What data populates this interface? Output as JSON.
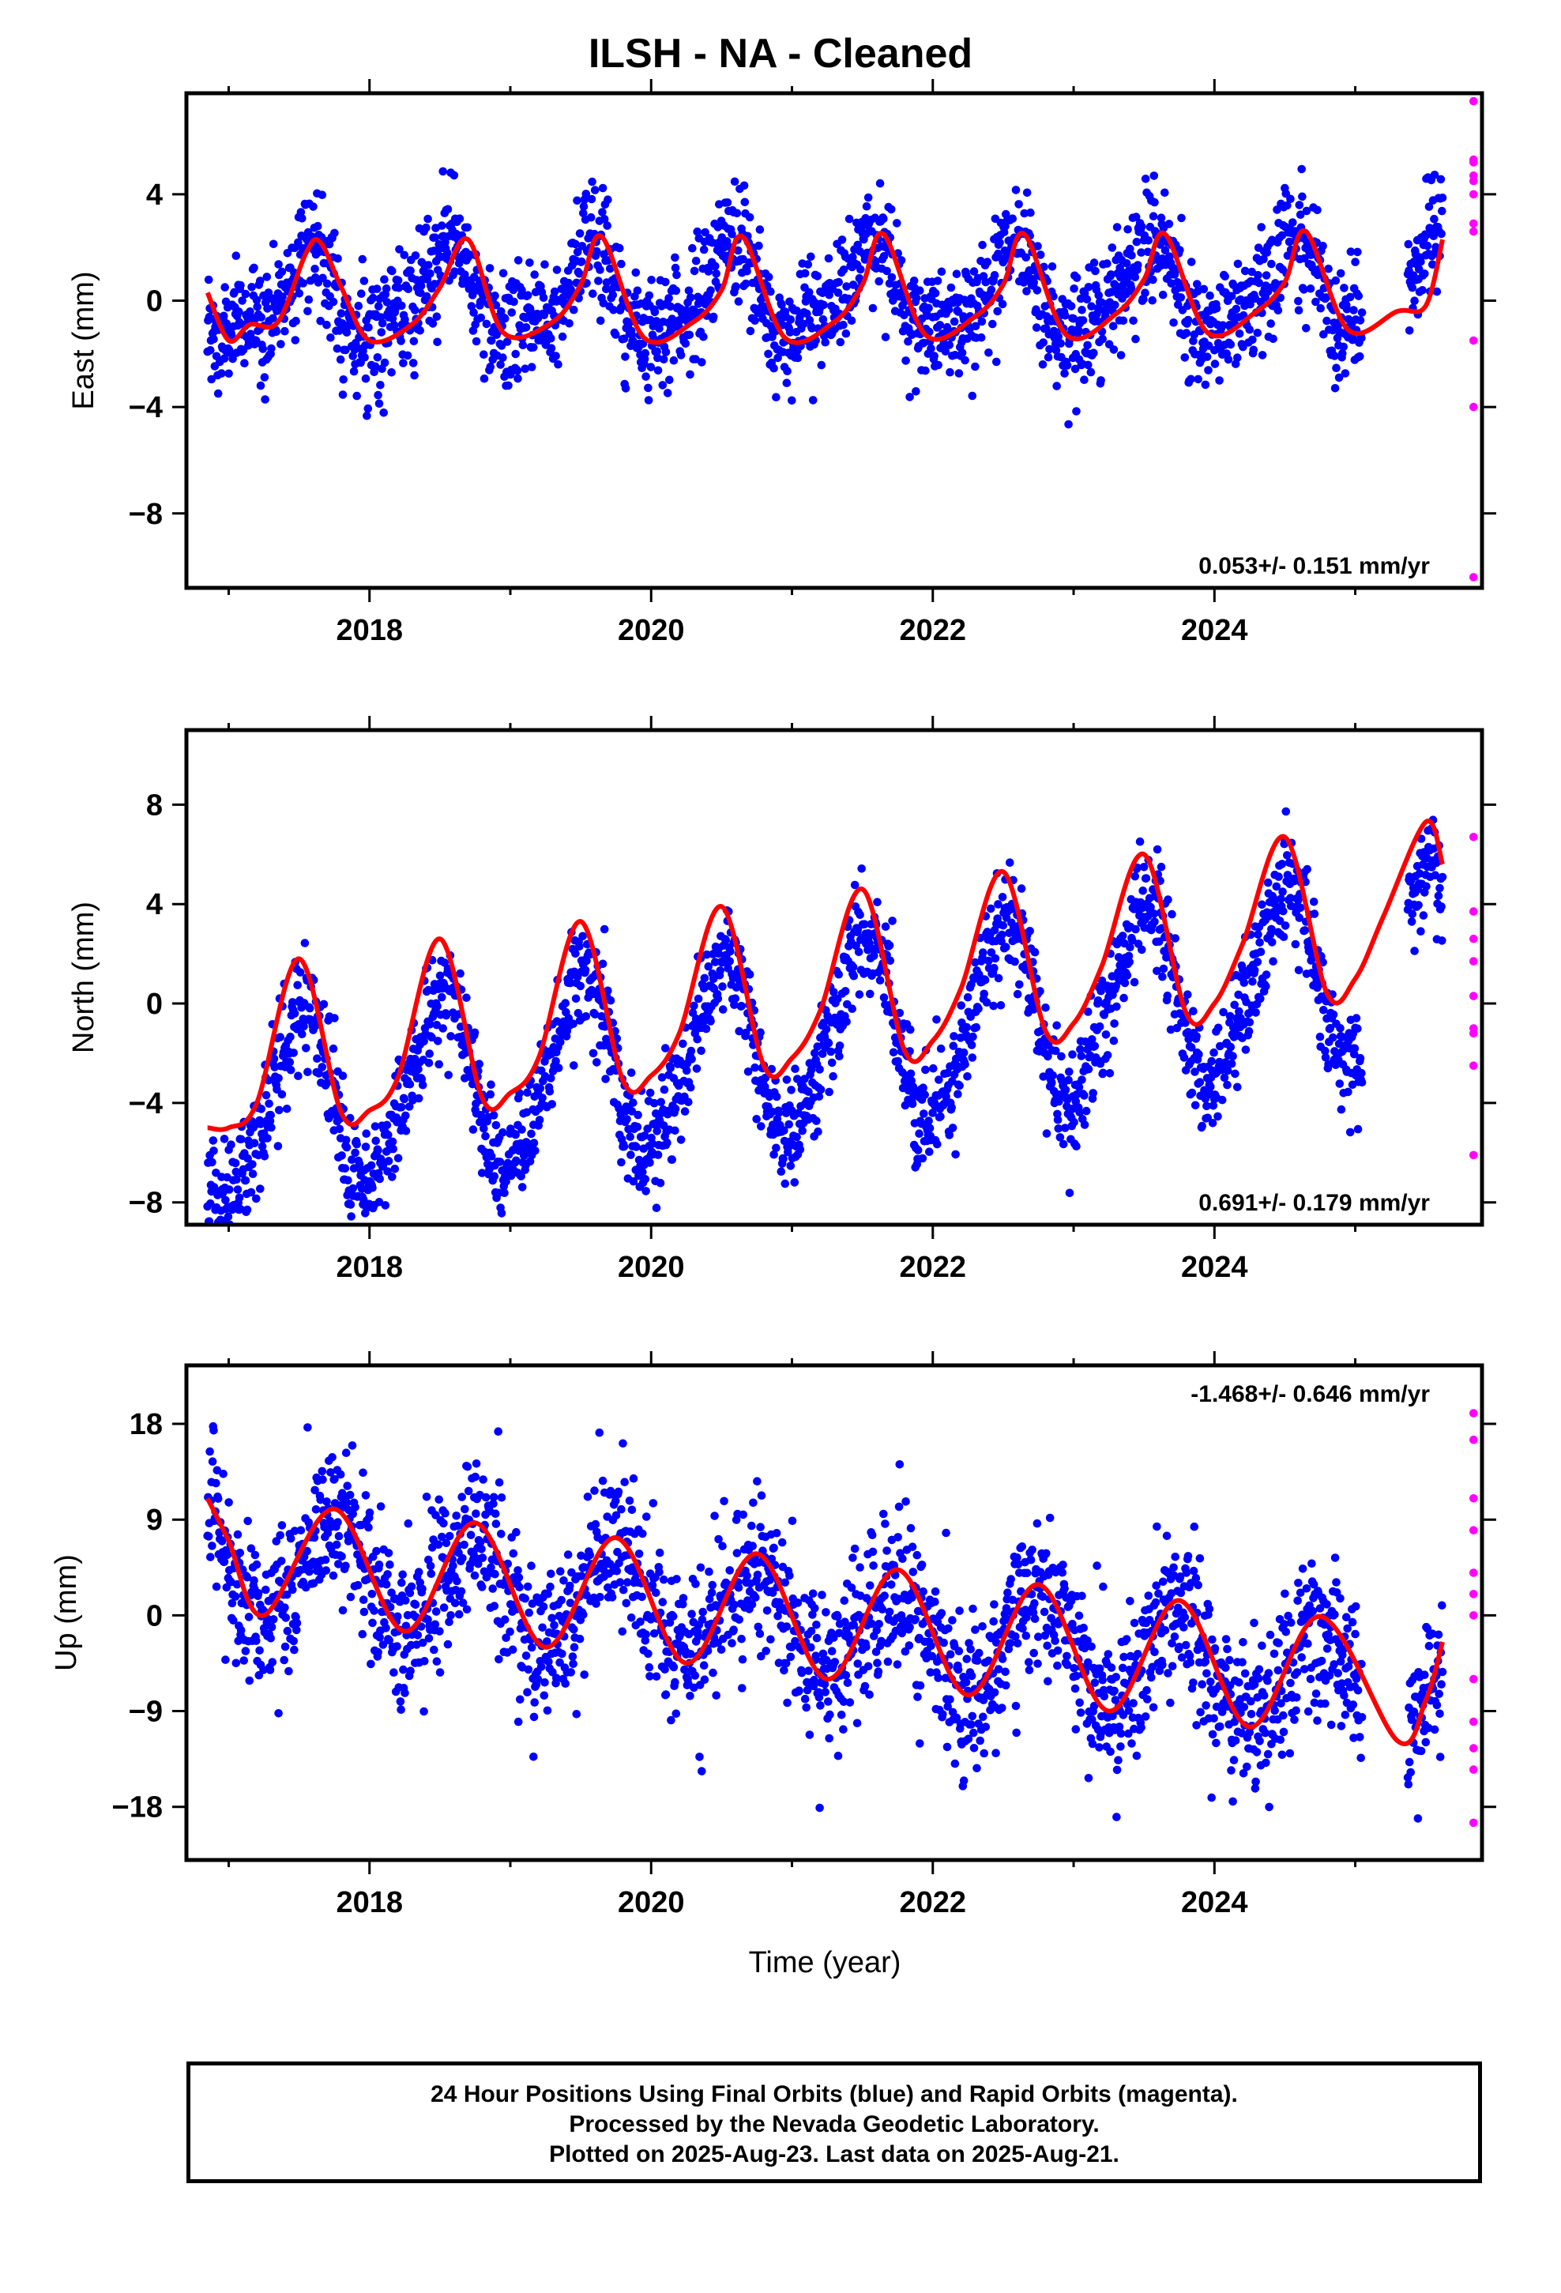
{
  "title": "ILSH  - NA - Cleaned",
  "caption": {
    "line1": "24 Hour Positions Using Final Orbits (blue) and Rapid Orbits (magenta).",
    "line2": "Processed by the Nevada Geodetic Laboratory.",
    "line3": "Plotted on 2025-Aug-23. Last data on 2025-Aug-21."
  },
  "colors": {
    "final": "#0000ff",
    "rapid": "#ff00ff",
    "model": "#ff0000"
  },
  "chart_data": [
    {
      "type": "scatter",
      "panel": "east",
      "ylabel": "East (mm)",
      "xlabel": "",
      "rate_label": "0.053+/- 0.151 mm/yr",
      "xlim": [
        2016.7,
        2025.9
      ],
      "ylim": [
        -10.8,
        7.8
      ],
      "yticks": [
        4,
        0,
        -4,
        -8
      ],
      "ytick_labels": [
        "4",
        "0",
        "−4",
        "−8"
      ],
      "xticks": [
        2018,
        2020,
        2022,
        2024
      ],
      "xtick_labels": [
        "2018",
        "2020",
        "2022",
        "2024"
      ],
      "start": 2016.85,
      "end": 2025.62,
      "trend": 0.053,
      "offset": 0.0,
      "amp_annual": 1.6,
      "phase_annual": 2017.55,
      "amp_semi": 0.7,
      "phase_semi": 2017.6,
      "noise": 1.1,
      "gap": [
        2025.05,
        2025.37
      ],
      "model_line": {
        "x": [
          2016.85,
          2017.0,
          2017.15,
          2017.35,
          2017.55,
          2017.65,
          2017.8,
          2018.0,
          2018.3,
          2018.5,
          2018.7,
          2018.95,
          2019.3,
          2019.5,
          2019.65,
          2019.95,
          2020.3,
          2020.5,
          2020.65,
          2020.95,
          2021.3,
          2021.5,
          2021.65,
          2021.95,
          2022.3,
          2022.5,
          2022.65,
          2022.95,
          2023.3,
          2023.5,
          2023.65,
          2023.95,
          2024.3,
          2024.5,
          2024.65,
          2024.95,
          2025.3,
          2025.5,
          2025.62
        ],
        "y": [
          0.3,
          -1.5,
          -0.9,
          -0.8,
          1.8,
          2.2,
          0.5,
          -1.5,
          -0.9,
          0.5,
          2.3,
          -1.2,
          -0.8,
          0.6,
          2.4,
          -1.4,
          -0.8,
          0.4,
          2.4,
          -1.4,
          -0.8,
          0.6,
          2.5,
          -1.3,
          -0.6,
          0.6,
          2.5,
          -1.3,
          -0.5,
          0.8,
          2.5,
          -1.2,
          -0.4,
          0.7,
          2.6,
          -1.1,
          -0.4,
          -0.2,
          2.3
        ]
      },
      "rapid": [
        7.5,
        5.3,
        5.2,
        4.7,
        4.5,
        4.0,
        2.9,
        2.6,
        -1.5,
        -4.0,
        -10.4
      ]
    },
    {
      "type": "scatter",
      "panel": "north",
      "ylabel": "North (mm)",
      "xlabel": "",
      "rate_label": "0.691+/- 0.179 mm/yr",
      "xlim": [
        2016.7,
        2025.9
      ],
      "ylim": [
        -8.9,
        11.0
      ],
      "yticks": [
        8,
        4,
        0,
        -4,
        -8
      ],
      "ytick_labels": [
        "8",
        "4",
        "0",
        "−4",
        "−8"
      ],
      "xticks": [
        2018,
        2020,
        2022,
        2024
      ],
      "xtick_labels": [
        "2018",
        "2020",
        "2022",
        "2024"
      ],
      "start": 2016.85,
      "end": 2025.62,
      "trend": 0.691,
      "offset": -4.5,
      "amp_annual": 3.6,
      "phase_annual": 2017.5,
      "amp_semi": 0.5,
      "phase_semi": 2017.6,
      "noise": 1.1,
      "gap": [
        2025.05,
        2025.37
      ],
      "model_line": {
        "x": [
          2016.85,
          2017.0,
          2017.2,
          2017.5,
          2017.8,
          2018.0,
          2018.2,
          2018.5,
          2018.8,
          2019.0,
          2019.2,
          2019.5,
          2019.8,
          2020.0,
          2020.2,
          2020.5,
          2020.8,
          2021.0,
          2021.2,
          2021.5,
          2021.8,
          2022.0,
          2022.2,
          2022.5,
          2022.8,
          2023.0,
          2023.2,
          2023.5,
          2023.8,
          2024.0,
          2024.2,
          2024.5,
          2024.8,
          2025.0,
          2025.2,
          2025.5,
          2025.62
        ],
        "y": [
          -5.0,
          -5.0,
          -4.0,
          1.8,
          -4.4,
          -4.3,
          -3.0,
          2.6,
          -3.8,
          -3.6,
          -2.2,
          3.3,
          -3.1,
          -2.9,
          -1.2,
          3.9,
          -2.5,
          -2.2,
          -0.3,
          4.6,
          -1.9,
          -1.5,
          0.6,
          5.3,
          -1.1,
          -0.8,
          1.5,
          6.0,
          -0.4,
          0.0,
          2.4,
          6.7,
          0.4,
          1.0,
          3.5,
          7.3,
          5.6
        ]
      },
      "rapid": [
        6.7,
        3.7,
        2.6,
        1.7,
        0.3,
        -1.2,
        -1.0,
        -2.5,
        -6.1
      ]
    },
    {
      "type": "scatter",
      "panel": "up",
      "ylabel": "Up (mm)",
      "xlabel": "Time (year)",
      "rate_label": "-1.468+/- 0.646 mm/yr",
      "xlim": [
        2016.7,
        2025.9
      ],
      "ylim": [
        -23.0,
        23.5
      ],
      "yticks": [
        18,
        9,
        0,
        -9,
        -18
      ],
      "ytick_labels": [
        "18",
        "9",
        "0",
        "−9",
        "−18"
      ],
      "xticks": [
        2018,
        2020,
        2022,
        2024
      ],
      "xtick_labels": [
        "2018",
        "2020",
        "2022",
        "2024"
      ],
      "start": 2016.85,
      "end": 2025.62,
      "trend": -1.468,
      "offset": 5.5,
      "amp_annual": 5.0,
      "phase_annual": 2017.75,
      "amp_semi": 0.0,
      "phase_semi": 2017.75,
      "noise": 3.8,
      "gap": [
        2025.05,
        2025.37
      ],
      "model_line": {
        "x": [
          2016.85,
          2017.0,
          2017.25,
          2017.75,
          2018.25,
          2018.75,
          2019.25,
          2019.75,
          2020.25,
          2020.75,
          2021.25,
          2021.75,
          2022.25,
          2022.75,
          2023.25,
          2023.75,
          2024.25,
          2024.75,
          2025.3,
          2025.5,
          2025.62
        ],
        "y": [
          11.0,
          7.0,
          0.0,
          10.0,
          -1.5,
          8.7,
          -3.0,
          7.3,
          -4.5,
          5.8,
          -6.0,
          4.3,
          -7.5,
          2.9,
          -9.0,
          1.4,
          -10.5,
          -0.1,
          -11.8,
          -8.0,
          -2.5
        ]
      },
      "rapid": [
        19.0,
        16.5,
        11.0,
        8.0,
        4.0,
        2.0,
        0.0,
        -6.0,
        -10.0,
        -12.5,
        -14.5,
        -19.5
      ]
    }
  ]
}
